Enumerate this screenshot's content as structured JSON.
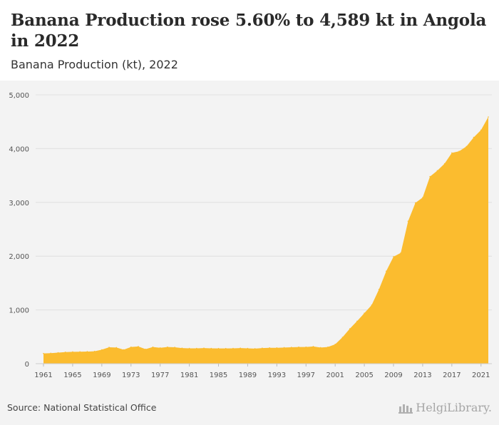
{
  "header": {
    "title": "Banana Production rose 5.60% to 4,589 kt in Angola in 2022",
    "subtitle": "Banana Production (kt), 2022"
  },
  "footer": {
    "source": "Source: National Statistical Office",
    "brand": "HelgiLibrary."
  },
  "colors": {
    "area_fill": "#fbbc2f",
    "background": "#f3f3f3",
    "grid": "#e0e0e0",
    "axis_text": "#555555"
  },
  "chart_data": {
    "type": "area",
    "title": "Banana Production rose 5.60% to 4,589 kt in Angola in 2022",
    "subtitle": "Banana Production (kt), 2022",
    "xlabel": "",
    "ylabel": "",
    "ylim": [
      0,
      5000
    ],
    "yticks": [
      0,
      1000,
      2000,
      3000,
      4000,
      5000
    ],
    "ytick_labels": [
      "0",
      "1,000",
      "2,000",
      "3,000",
      "4,000",
      "5,000"
    ],
    "xticks": [
      1961,
      1965,
      1969,
      1973,
      1977,
      1981,
      1985,
      1989,
      1993,
      1997,
      2001,
      2005,
      2009,
      2013,
      2017,
      2021
    ],
    "grid": true,
    "x": [
      1961,
      1962,
      1963,
      1964,
      1965,
      1966,
      1967,
      1968,
      1969,
      1970,
      1971,
      1972,
      1973,
      1974,
      1975,
      1976,
      1977,
      1978,
      1979,
      1980,
      1981,
      1982,
      1983,
      1984,
      1985,
      1986,
      1987,
      1988,
      1989,
      1990,
      1991,
      1992,
      1993,
      1994,
      1995,
      1996,
      1997,
      1998,
      1999,
      2000,
      2001,
      2002,
      2003,
      2004,
      2005,
      2006,
      2007,
      2008,
      2009,
      2010,
      2011,
      2012,
      2013,
      2014,
      2015,
      2016,
      2017,
      2018,
      2019,
      2020,
      2021,
      2022
    ],
    "values": [
      190,
      195,
      205,
      215,
      220,
      222,
      225,
      230,
      260,
      305,
      300,
      260,
      310,
      320,
      270,
      310,
      295,
      310,
      305,
      290,
      285,
      285,
      290,
      285,
      283,
      283,
      285,
      290,
      285,
      280,
      290,
      295,
      295,
      300,
      305,
      310,
      310,
      320,
      300,
      310,
      360,
      490,
      650,
      790,
      940,
      1090,
      1380,
      1720,
      1990,
      2060,
      2650,
      2990,
      3090,
      3480,
      3590,
      3720,
      3920,
      3950,
      4040,
      4210,
      4345,
      4589
    ]
  }
}
